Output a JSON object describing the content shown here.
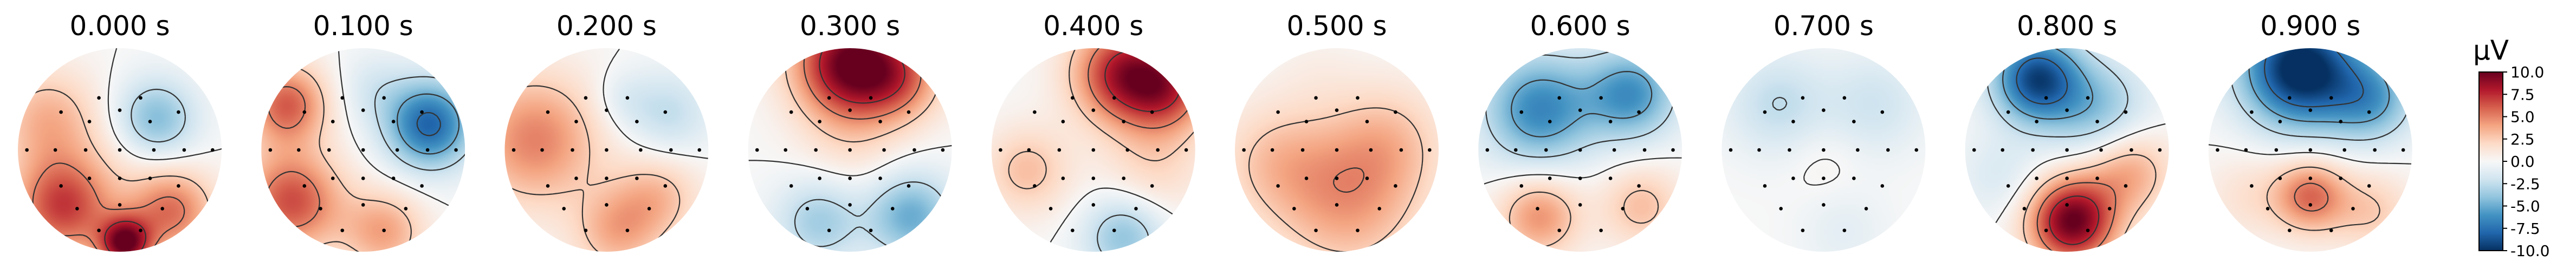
{
  "chart_data": {
    "type": "heatmap",
    "panel_kind": "topomap",
    "times": [
      "0.000 s",
      "0.100 s",
      "0.200 s",
      "0.300 s",
      "0.400 s",
      "0.500 s",
      "0.600 s",
      "0.700 s",
      "0.800 s",
      "0.900 s"
    ],
    "colorbar": {
      "unit": "µV",
      "ticks": [
        "10.0",
        "7.5",
        "5.0",
        "2.5",
        "0.0",
        "-2.5",
        "-5.0",
        "-7.5",
        "-10.0"
      ],
      "vmin": -10.0,
      "vmax": 10.0,
      "colormap": "RdBu_r",
      "colors": [
        "#053061",
        "#2166ac",
        "#4393c3",
        "#92c5de",
        "#d1e5f0",
        "#f7f7f7",
        "#fddbc7",
        "#f4a582",
        "#d6604d",
        "#b2182b",
        "#67001f"
      ]
    },
    "sources": [
      [
        {
          "x": 0.35,
          "y": 0.3,
          "v": -4.5,
          "w": 0.28
        },
        {
          "x": -0.55,
          "y": -0.55,
          "v": 7.0,
          "w": 0.35
        },
        {
          "x": 0.5,
          "y": -0.6,
          "v": 5.5,
          "w": 0.3
        },
        {
          "x": 0.05,
          "y": -0.92,
          "v": 9.0,
          "w": 0.18
        },
        {
          "x": -0.7,
          "y": 0.3,
          "v": 3.5,
          "w": 0.35
        },
        {
          "x": 0.05,
          "y": 0.0,
          "v": 0.6,
          "w": 0.3
        }
      ],
      [
        {
          "x": 0.65,
          "y": 0.25,
          "v": -8.0,
          "w": 0.3
        },
        {
          "x": -0.75,
          "y": 0.45,
          "v": 6.0,
          "w": 0.28
        },
        {
          "x": -0.7,
          "y": -0.5,
          "v": 6.5,
          "w": 0.35
        },
        {
          "x": 0.2,
          "y": -0.8,
          "v": 4.0,
          "w": 0.28
        },
        {
          "x": 0.1,
          "y": 0.6,
          "v": -1.5,
          "w": 0.25
        }
      ],
      [
        {
          "x": -0.7,
          "y": 0.1,
          "v": 5.0,
          "w": 0.45
        },
        {
          "x": 0.6,
          "y": 0.35,
          "v": -2.5,
          "w": 0.3
        },
        {
          "x": 0.5,
          "y": -0.45,
          "v": 3.0,
          "w": 0.3
        },
        {
          "x": 0.1,
          "y": -0.8,
          "v": 3.5,
          "w": 0.3
        },
        {
          "x": 0.15,
          "y": 0.5,
          "v": -1.2,
          "w": 0.2
        }
      ],
      [
        {
          "x": 0.0,
          "y": 0.85,
          "v": 10.0,
          "w": 0.38
        },
        {
          "x": 0.5,
          "y": 0.7,
          "v": 4.0,
          "w": 0.3
        },
        {
          "x": 0.6,
          "y": -0.65,
          "v": -5.0,
          "w": 0.3
        },
        {
          "x": -0.3,
          "y": -0.7,
          "v": -3.5,
          "w": 0.3
        },
        {
          "x": 0.0,
          "y": 0.05,
          "v": 1.2,
          "w": 0.35
        }
      ],
      [
        {
          "x": 0.3,
          "y": 0.75,
          "v": 8.0,
          "w": 0.35
        },
        {
          "x": 0.75,
          "y": 0.6,
          "v": 5.5,
          "w": 0.3
        },
        {
          "x": 0.3,
          "y": -0.85,
          "v": -4.0,
          "w": 0.28
        },
        {
          "x": -0.65,
          "y": -0.2,
          "v": 3.0,
          "w": 0.3
        },
        {
          "x": 0.6,
          "y": -0.15,
          "v": 2.0,
          "w": 0.35
        }
      ],
      [
        {
          "x": -0.2,
          "y": 0.75,
          "v": 0.5,
          "w": 0.3
        },
        {
          "x": 0.1,
          "y": -0.5,
          "v": 4.0,
          "w": 0.5
        },
        {
          "x": 0.5,
          "y": 0.1,
          "v": 2.5,
          "w": 0.4
        },
        {
          "x": -0.6,
          "y": -0.1,
          "v": 2.5,
          "w": 0.4
        }
      ],
      [
        {
          "x": -0.4,
          "y": 0.4,
          "v": -6.5,
          "w": 0.38
        },
        {
          "x": 0.5,
          "y": 0.55,
          "v": -6.0,
          "w": 0.32
        },
        {
          "x": -0.4,
          "y": -0.65,
          "v": 4.5,
          "w": 0.28
        },
        {
          "x": 0.6,
          "y": -0.55,
          "v": 3.0,
          "w": 0.28
        }
      ],
      [
        {
          "x": -0.45,
          "y": 0.45,
          "v": -2.5,
          "w": 0.35
        },
        {
          "x": 0.5,
          "y": 0.45,
          "v": -2.0,
          "w": 0.35
        },
        {
          "x": 0.0,
          "y": -0.1,
          "v": 0.6,
          "w": 0.25
        },
        {
          "x": 0.2,
          "y": -0.8,
          "v": -1.0,
          "w": 0.3
        }
      ],
      [
        {
          "x": -0.3,
          "y": 0.7,
          "v": -9.0,
          "w": 0.3
        },
        {
          "x": 0.3,
          "y": 0.4,
          "v": -4.0,
          "w": 0.35
        },
        {
          "x": 0.05,
          "y": -0.7,
          "v": 10.0,
          "w": 0.3
        },
        {
          "x": 0.6,
          "y": -0.2,
          "v": 4.0,
          "w": 0.3
        },
        {
          "x": -0.65,
          "y": -0.25,
          "v": -1.5,
          "w": 0.3
        }
      ],
      [
        {
          "x": -0.1,
          "y": 0.8,
          "v": -11.0,
          "w": 0.4
        },
        {
          "x": 0.6,
          "y": 0.5,
          "v": -5.0,
          "w": 0.3
        },
        {
          "x": 0.0,
          "y": -0.45,
          "v": 5.5,
          "w": 0.25
        },
        {
          "x": 0.6,
          "y": -0.6,
          "v": 2.5,
          "w": 0.28
        },
        {
          "x": -0.6,
          "y": -0.45,
          "v": 1.5,
          "w": 0.3
        }
      ]
    ],
    "contour_levels": [
      -7.5,
      -5.0,
      -2.5,
      0.0,
      2.5,
      5.0,
      7.5
    ],
    "sensors": [
      [
        -0.22,
        0.55
      ],
      [
        0.22,
        0.55
      ],
      [
        0.0,
        0.42
      ],
      [
        -0.62,
        0.4
      ],
      [
        -0.32,
        0.3
      ],
      [
        0.32,
        0.3
      ],
      [
        0.62,
        0.4
      ],
      [
        -0.98,
        0.0
      ],
      [
        -0.68,
        0.0
      ],
      [
        -0.36,
        0.0
      ],
      [
        0.0,
        0.0
      ],
      [
        0.36,
        0.0
      ],
      [
        0.68,
        0.0
      ],
      [
        0.98,
        0.0
      ],
      [
        -0.62,
        -0.38
      ],
      [
        -0.32,
        -0.3
      ],
      [
        0.0,
        -0.3
      ],
      [
        0.32,
        -0.3
      ],
      [
        0.62,
        -0.38
      ],
      [
        -0.45,
        -0.62
      ],
      [
        0.0,
        -0.58
      ],
      [
        0.45,
        -0.62
      ],
      [
        -0.22,
        -0.85
      ],
      [
        0.22,
        -0.85
      ]
    ]
  }
}
